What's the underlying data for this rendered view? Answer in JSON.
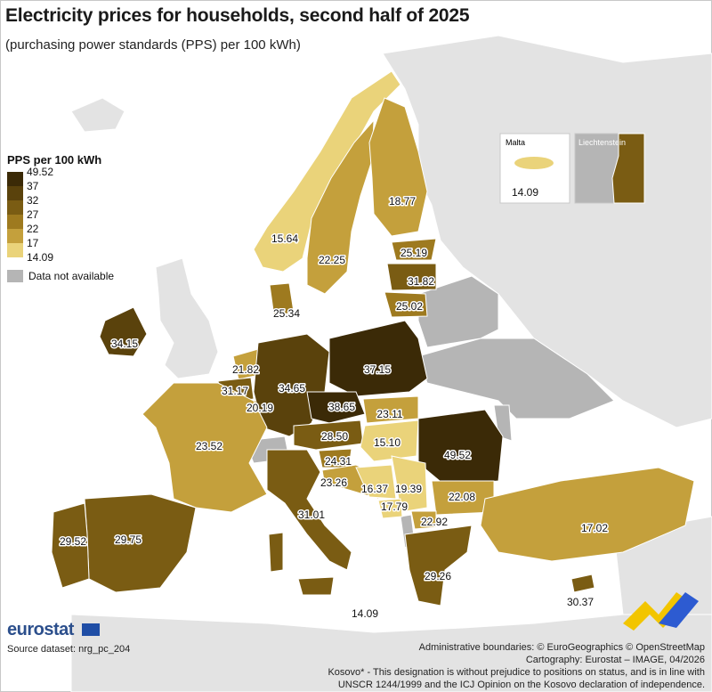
{
  "title": "Electricity prices for households, second half of 2025",
  "subtitle": "(purchasing power standards (PPS) per 100 kWh)",
  "legend": {
    "title": "PPS per 100 kWh",
    "ticks": [
      "49.52",
      "37",
      "32",
      "27",
      "22",
      "17",
      "14.09"
    ],
    "colors": [
      "#3b2a07",
      "#5a420c",
      "#7a5c13",
      "#9e7a1f",
      "#c4a03c",
      "#ead37a"
    ],
    "na_label": "Data not available",
    "na_color": "#b5b5b5"
  },
  "map_values": {
    "norway": "15.64",
    "sweden": "22.25",
    "finland": "18.77",
    "estonia": "25.19",
    "latvia": "31.82",
    "lithuania": "25.02",
    "denmark": "25.34",
    "ireland": "34.15",
    "netherlands": "21.82",
    "belgium": "31.17",
    "luxembourg": "20.19",
    "germany": "34.65",
    "poland": "37.15",
    "czechia": "38.65",
    "slovakia": "23.11",
    "austria": "28.50",
    "hungary": "15.10",
    "romania": "49.52",
    "slovenia": "24.31",
    "croatia": "23.26",
    "bosnia": "16.37",
    "serbia": "19.39",
    "montenegro": "17.79",
    "bulgaria": "22.08",
    "north_macedonia": "22.92",
    "greece": "29.26",
    "turkey": "17.02",
    "france": "23.52",
    "italy": "31.01",
    "spain": "29.75",
    "portugal": "29.52",
    "malta": "14.09",
    "cyprus": "30.37"
  },
  "insets": {
    "malta_title": "Malta",
    "malta_value": "14.09",
    "liechtenstein_title": "Liechtenstein"
  },
  "footer": {
    "logo": "eurostat",
    "source": "Source dataset: nrg_pc_204",
    "credit1": "Administrative boundaries: © EuroGeographics © OpenStreetMap",
    "credit2": "Cartography: Eurostat – IMAGE, 04/2026",
    "credit3": "Kosovo* - This designation is without prejudice to positions on status, and is in line with",
    "credit4": "UNSCR 1244/1999 and the ICJ Opinion on the Kosovo declaration of independence."
  }
}
